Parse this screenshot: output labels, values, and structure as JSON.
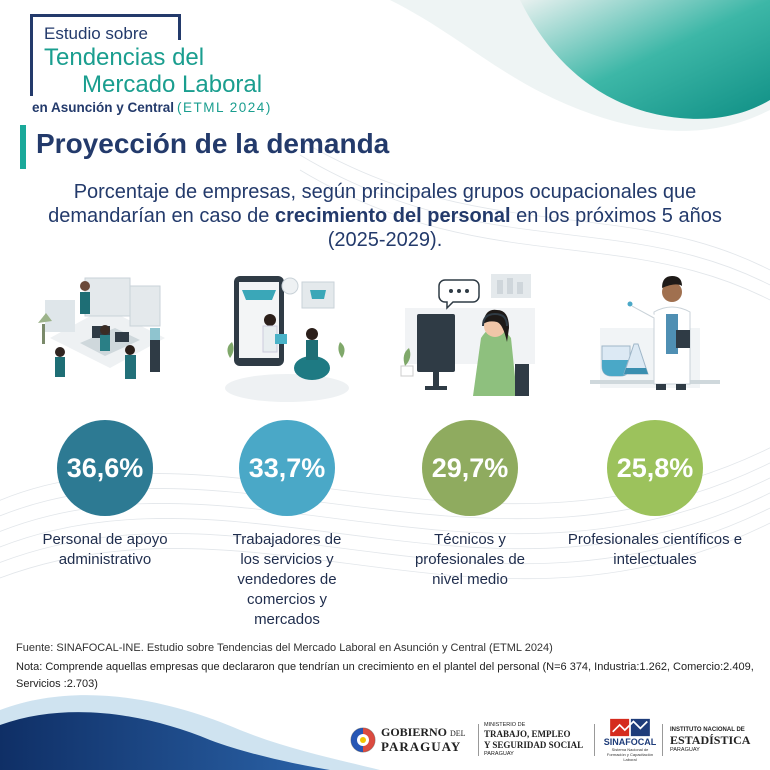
{
  "header": {
    "line1": "Estudio sobre",
    "line2": "Tendencias del",
    "line3": "Mercado Laboral",
    "line4": "en Asunción y Central",
    "line4_year": "(ETML 2024)"
  },
  "title": "Proyección de la demanda",
  "subtitle": {
    "part1": "Porcentaje de empresas, según principales grupos ocupacionales que demandarían en caso de ",
    "bold": "crecimiento del personal",
    "part2": " en los próximos 5 años (2025-2029)."
  },
  "items": [
    {
      "value": "36,6%",
      "label": "Personal de apoyo administrativo",
      "color": "#2d7a93",
      "icon": "office-team-illustration"
    },
    {
      "value": "33,7%",
      "label": "Trabajadores de los servicios y vendedores de comercios y mercados",
      "color": "#4aa8c7",
      "icon": "online-shop-illustration"
    },
    {
      "value": "29,7%",
      "label": "Técnicos y profesionales de nivel medio",
      "color": "#8fab5f",
      "icon": "call-center-illustration"
    },
    {
      "value": "25,8%",
      "label": "Profesionales científicos e intelectuales",
      "color": "#9cc25c",
      "icon": "scientist-illustration"
    }
  ],
  "footer": {
    "source": "Fuente: SINAFOCAL-INE. Estudio sobre Tendencias del Mercado Laboral en Asunción y Central (ETML 2024)",
    "note": "Nota: Comprende aquellas empresas que declararon que tendrían un crecimiento en el plantel del personal (N=6 374, Industria:1.262, Comercio:2.409, Servicios :2.703)"
  },
  "logos": {
    "gov_line1": "GOBIERNO",
    "gov_del": "DEL",
    "gov_line2": "PARAGUAY",
    "ministry_small": "MINISTERIO DE",
    "ministry_line1": "TRABAJO, EMPLEO",
    "ministry_line2": "Y SEGURIDAD SOCIAL",
    "ministry_country": "PARAGUAY",
    "sinafocal": "SINAFOCAL",
    "sinafocal_sub": "Sistema Nacional de Formación y Capacitación Laboral",
    "ine_small": "INSTITUTO NACIONAL DE",
    "ine_big": "ESTADÍSTICA",
    "ine_country": "PARAGUAY"
  },
  "colors": {
    "navy": "#233a6b",
    "teal": "#1aa99a"
  }
}
